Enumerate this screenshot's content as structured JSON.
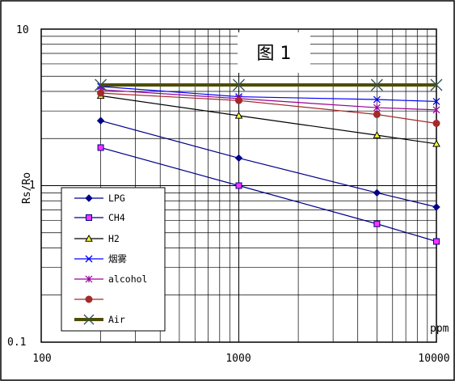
{
  "chart_data": {
    "type": "line",
    "title": "图 1",
    "xlabel": "ppm",
    "ylabel": "Rs/Ro",
    "xscale": "log",
    "yscale": "log",
    "xlim": [
      100,
      10000
    ],
    "ylim": [
      0.1,
      10
    ],
    "x_tick_labels": [
      "100",
      "1000",
      "10000"
    ],
    "y_tick_labels": [
      "0.1",
      "1",
      "10"
    ],
    "grid": true,
    "legend_position": "bottom-left",
    "series": [
      {
        "name": "LPG",
        "color": "#00008b",
        "marker": "diamond",
        "x": [
          200,
          1000,
          5000,
          10000
        ],
        "y": [
          2.6,
          1.5,
          0.9,
          0.73
        ]
      },
      {
        "name": "CH4",
        "color": "#00008b",
        "marker": "square",
        "marker_fill": "#ff33ff",
        "x": [
          200,
          1000,
          5000,
          10000
        ],
        "y": [
          1.75,
          1.0,
          0.57,
          0.44
        ]
      },
      {
        "name": "H2",
        "color": "#000000",
        "marker": "triangle",
        "marker_fill": "#ffff33",
        "x": [
          200,
          1000,
          5000,
          10000
        ],
        "y": [
          3.75,
          2.8,
          2.1,
          1.85
        ]
      },
      {
        "name": "烟雾",
        "color": "#0000ff",
        "marker": "x",
        "x": [
          200,
          1000,
          5000,
          10000
        ],
        "y": [
          4.3,
          3.7,
          3.55,
          3.45
        ]
      },
      {
        "name": "alcohol",
        "color": "#990099",
        "marker": "asterisk",
        "x": [
          200,
          1000,
          5000,
          10000
        ],
        "y": [
          4.1,
          3.6,
          3.15,
          3.05
        ]
      },
      {
        "name": "",
        "color": "#a52a2a",
        "marker": "circle",
        "x": [
          200,
          1000,
          5000,
          10000
        ],
        "y": [
          3.9,
          3.5,
          2.85,
          2.5
        ]
      },
      {
        "name": "Air",
        "color": "#4d4d00",
        "marker": "x",
        "thick": true,
        "x": [
          200,
          1000,
          5000,
          10000
        ],
        "y": [
          4.4,
          4.4,
          4.4,
          4.4
        ]
      }
    ]
  }
}
